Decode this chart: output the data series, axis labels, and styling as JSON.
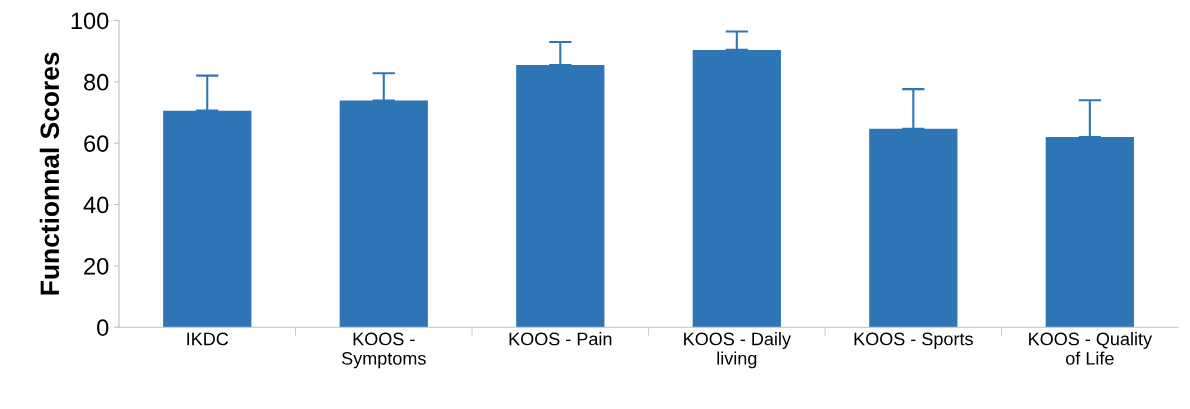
{
  "chart_data": {
    "type": "bar",
    "ylabel": "Functionnal Scores",
    "categories": [
      "IKDC",
      "KOOS -\nSymptoms",
      "KOOS - Pain",
      "KOOS - Daily\nliving",
      "KOOS - Sports",
      "KOOS - Quality\nof Life"
    ],
    "values": [
      70.6,
      73.9,
      85.5,
      90.4,
      64.7,
      62.0
    ],
    "errors": [
      [
        70.6,
        82.0
      ],
      [
        73.9,
        82.8
      ],
      [
        85.5,
        93.0
      ],
      [
        90.4,
        96.4
      ],
      [
        64.7,
        77.6
      ],
      [
        62.0,
        74.0
      ]
    ],
    "color": "#2e75b6",
    "ylim": [
      0,
      100
    ],
    "yticks": [
      0,
      20,
      40,
      60,
      80,
      100
    ],
    "grid": false
  }
}
